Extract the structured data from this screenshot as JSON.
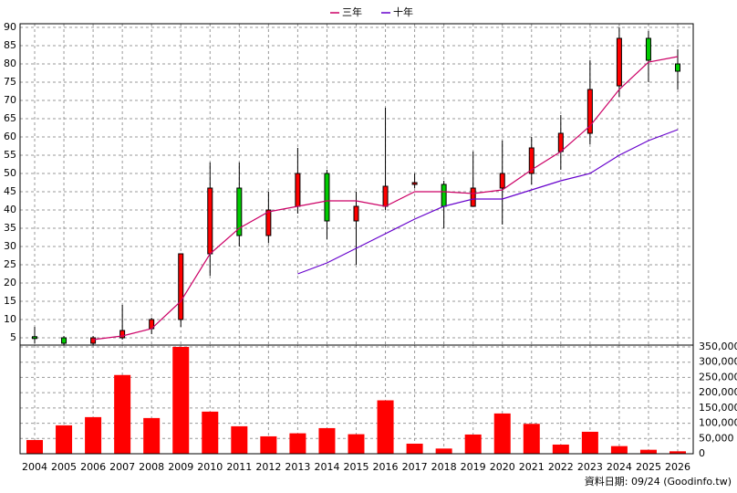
{
  "chart_data": [
    {
      "type": "candlestick",
      "categories": [
        "2004",
        "2005",
        "2006",
        "2007",
        "2008",
        "2009",
        "2010",
        "2011",
        "2012",
        "2013",
        "2014",
        "2015",
        "2016",
        "2017",
        "2018",
        "2019",
        "2020",
        "2021",
        "2022",
        "2023",
        "2024",
        "2025",
        "2026"
      ],
      "open": [
        5.3,
        5,
        3.5,
        5,
        7.5,
        10,
        28,
        46,
        33,
        41,
        50,
        37,
        41,
        47,
        47,
        41,
        46,
        50,
        56,
        61,
        74,
        87,
        80
      ],
      "high": [
        8,
        5.5,
        5.5,
        14,
        10.5,
        28,
        53,
        53,
        45,
        57,
        51,
        45,
        68,
        50,
        48,
        56,
        59,
        60,
        66,
        81,
        90,
        89,
        84
      ],
      "low": [
        3.5,
        3,
        3,
        4.5,
        6,
        8,
        22,
        30,
        31,
        39,
        32,
        25,
        40,
        46,
        35,
        41,
        36,
        47,
        51,
        58,
        71,
        75,
        73
      ],
      "close": [
        4.8,
        3.5,
        5,
        7,
        10,
        28,
        46,
        33,
        40,
        50,
        37,
        41,
        46.5,
        47.5,
        41,
        46,
        50,
        57,
        61,
        73,
        87,
        81,
        78
      ],
      "up_color": "#ff0000",
      "down_color": "#00cc00",
      "series": [
        {
          "name": "三年",
          "color": "#cc0066",
          "values": [
            null,
            null,
            4.5,
            5.5,
            7.5,
            15,
            28,
            35,
            39.5,
            41,
            42.5,
            42.5,
            41,
            45,
            45,
            44.5,
            45.5,
            51,
            56,
            63,
            73,
            80.5,
            82
          ]
        },
        {
          "name": "十年",
          "color": "#6600cc",
          "values": [
            null,
            null,
            null,
            null,
            null,
            null,
            null,
            null,
            null,
            22.5,
            25.5,
            29.5,
            33.5,
            37.5,
            41,
            43,
            43,
            45.5,
            48,
            50,
            55,
            59,
            62
          ]
        }
      ],
      "ylim": [
        3,
        91
      ],
      "yticks": [
        5,
        10,
        15,
        20,
        25,
        30,
        35,
        40,
        45,
        50,
        55,
        60,
        65,
        70,
        75,
        80,
        85,
        90
      ],
      "grid": true,
      "legend": "top"
    },
    {
      "type": "bar",
      "color": "#ff0000",
      "values": [
        45000,
        93000,
        120000,
        258000,
        117000,
        350000,
        138000,
        90000,
        57000,
        67000,
        84000,
        64000,
        175000,
        33000,
        17000,
        63000,
        132000,
        98000,
        30000,
        72000,
        25000,
        13000,
        8000
      ],
      "ylim": [
        0,
        356000
      ],
      "yticks": [
        {
          "value": 0,
          "label": "0"
        },
        {
          "value": 50000,
          "label": "50,000"
        },
        {
          "value": 100000,
          "label": "100,000"
        },
        {
          "value": 150000,
          "label": "150,000"
        },
        {
          "value": 200000,
          "label": "200,000"
        },
        {
          "value": 250000,
          "label": "250,000"
        },
        {
          "value": 300000,
          "label": "300,000"
        },
        {
          "value": 350000,
          "label": "350,000"
        }
      ],
      "grid": true
    }
  ],
  "footer": "資料日期: 09/24 (Goodinfo.tw)"
}
